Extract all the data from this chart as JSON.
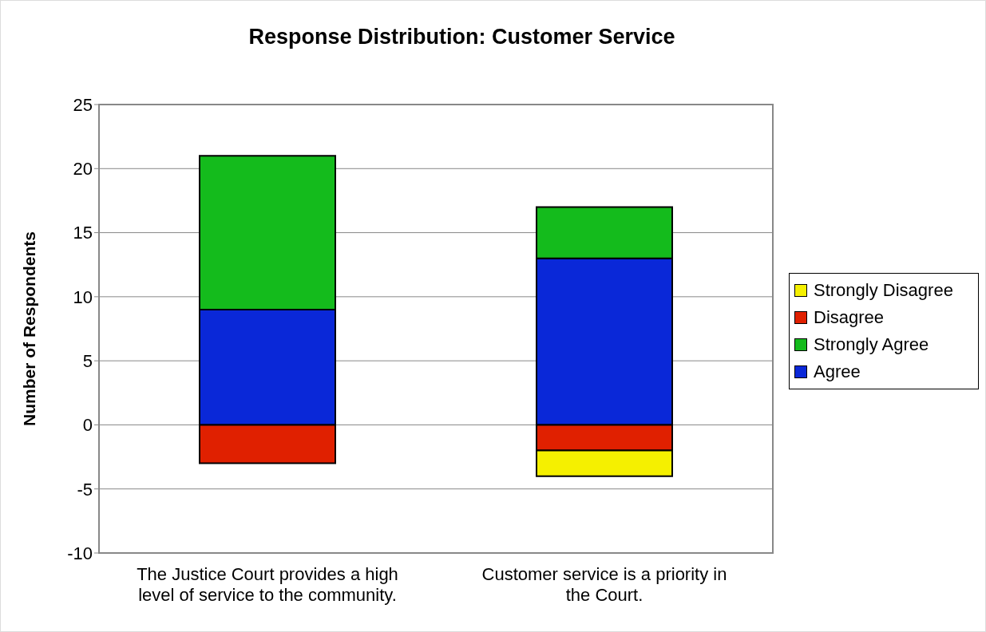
{
  "chart_data": {
    "type": "bar",
    "title": "Response Distribution:  Customer Service",
    "ylabel": "Number of Respondents",
    "categories": [
      "The Justice Court provides a high level of service to the community.",
      "Customer service is a priority in the Court."
    ],
    "stacked": true,
    "series": [
      {
        "name": "Agree",
        "color": "#0a28d8",
        "values": [
          9,
          13
        ]
      },
      {
        "name": "Strongly Agree",
        "color": "#14bb1c",
        "values": [
          12,
          4
        ]
      },
      {
        "name": "Disagree",
        "color": "#e02000",
        "values": [
          -3,
          -2
        ]
      },
      {
        "name": "Strongly Disagree",
        "color": "#f5f000",
        "values": [
          null,
          -2
        ]
      }
    ],
    "ylim": [
      -10,
      25
    ],
    "yticks": [
      -10,
      -5,
      0,
      5,
      10,
      15,
      20,
      25
    ],
    "grid": "y",
    "legend": "right"
  }
}
